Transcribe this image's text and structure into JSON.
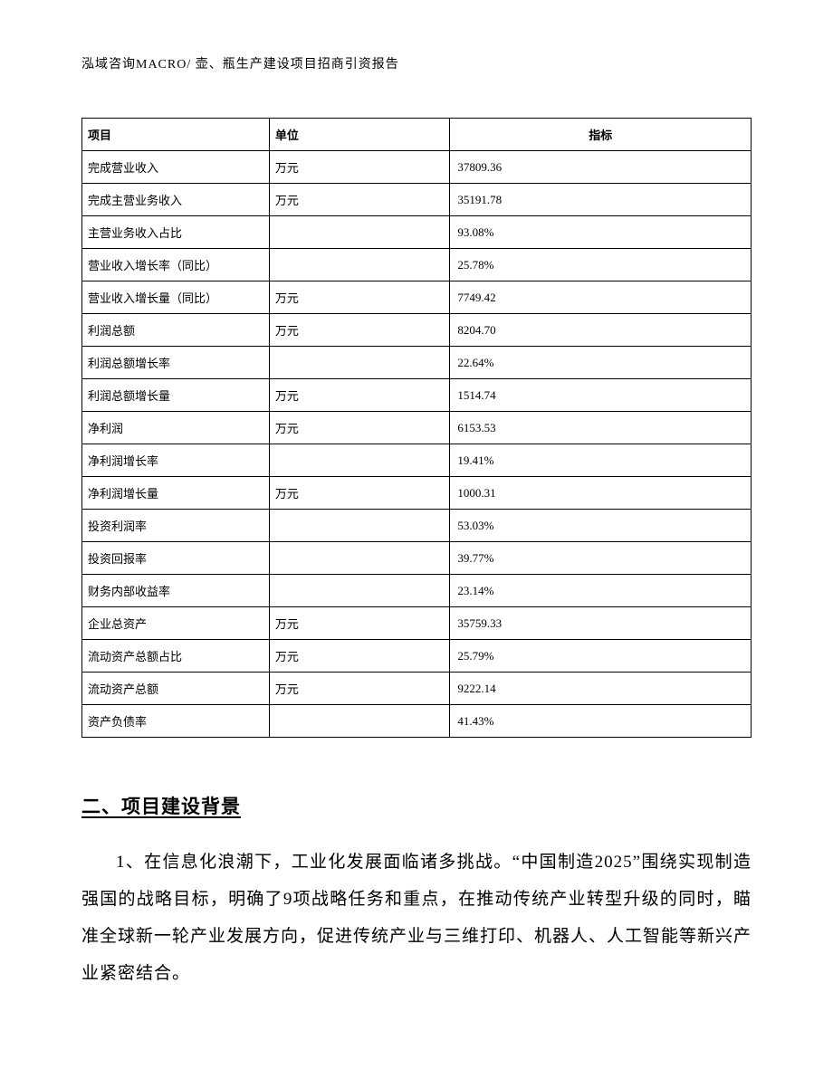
{
  "header": "泓域咨询MACRO/ 壶、瓶生产建设项目招商引资报告",
  "table": {
    "columns": [
      "项目",
      "单位",
      "指标"
    ],
    "rows": [
      [
        "完成营业收入",
        "万元",
        "37809.36"
      ],
      [
        "完成主营业务收入",
        "万元",
        "35191.78"
      ],
      [
        "主营业务收入占比",
        "",
        "93.08%"
      ],
      [
        "营业收入增长率（同比）",
        "",
        "25.78%"
      ],
      [
        "营业收入增长量（同比）",
        "万元",
        "7749.42"
      ],
      [
        "利润总额",
        "万元",
        "8204.70"
      ],
      [
        "利润总额增长率",
        "",
        "22.64%"
      ],
      [
        "利润总额增长量",
        "万元",
        "1514.74"
      ],
      [
        "净利润",
        "万元",
        "6153.53"
      ],
      [
        "净利润增长率",
        "",
        "19.41%"
      ],
      [
        "净利润增长量",
        "万元",
        "1000.31"
      ],
      [
        "投资利润率",
        "",
        "53.03%"
      ],
      [
        "投资回报率",
        "",
        "39.77%"
      ],
      [
        "财务内部收益率",
        "",
        "23.14%"
      ],
      [
        "企业总资产",
        "万元",
        "35759.33"
      ],
      [
        "流动资产总额占比",
        "万元",
        "25.79%"
      ],
      [
        "流动资产总额",
        "万元",
        "9222.14"
      ],
      [
        "资产负债率",
        "",
        "41.43%"
      ]
    ]
  },
  "section": {
    "heading": "二、项目建设背景",
    "paragraph": "1、在信息化浪潮下，工业化发展面临诸多挑战。“中国制造2025”围绕实现制造强国的战略目标，明确了9项战略任务和重点，在推动传统产业转型升级的同时，瞄准全球新一轮产业发展方向，促进传统产业与三维打印、机器人、人工智能等新兴产业紧密结合。"
  }
}
